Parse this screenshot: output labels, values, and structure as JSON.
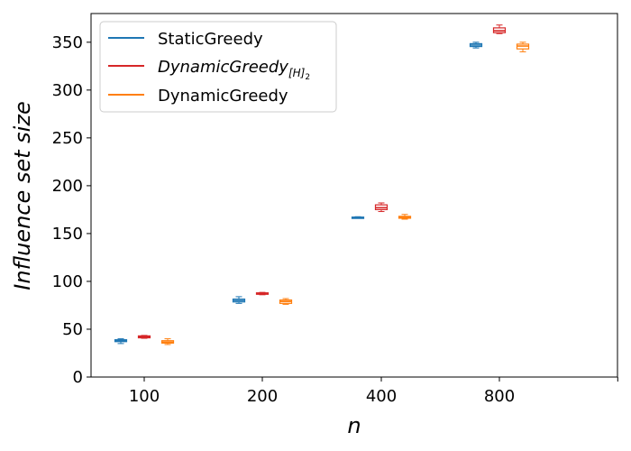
{
  "chart_data": {
    "type": "box",
    "xlabel": "n",
    "ylabel": "Influence set size",
    "categories": [
      "100",
      "200",
      "400",
      "800"
    ],
    "ylim": [
      0,
      380
    ],
    "yticks": [
      0,
      50,
      100,
      150,
      200,
      250,
      300,
      350
    ],
    "legend_position": "top-left",
    "grid": false,
    "series": [
      {
        "name": "StaticGreedy",
        "color": "#1f77b4",
        "boxes": [
          {
            "whislo": 35,
            "q1": 37,
            "med": 38,
            "q3": 39,
            "whishi": 40
          },
          {
            "whislo": 77,
            "q1": 78.5,
            "med": 80,
            "q3": 81.5,
            "whishi": 84
          },
          {
            "whislo": 166,
            "q1": 166.3,
            "med": 166.7,
            "q3": 167.2,
            "whishi": 167.6
          },
          {
            "whislo": 344,
            "q1": 345.5,
            "med": 347,
            "q3": 348.5,
            "whishi": 350
          }
        ]
      },
      {
        "name_main": "DynamicGreedy",
        "name_sub": "[H]",
        "name_subsub": "2",
        "color": "#d62728",
        "boxes": [
          {
            "whislo": 40.5,
            "q1": 41,
            "med": 42,
            "q3": 43,
            "whishi": 43.5
          },
          {
            "whislo": 86,
            "q1": 86.5,
            "med": 87,
            "q3": 88,
            "whishi": 88.5
          },
          {
            "whislo": 173,
            "q1": 175,
            "med": 177,
            "q3": 180,
            "whishi": 182
          },
          {
            "whislo": 359,
            "q1": 360,
            "med": 362,
            "q3": 365,
            "whishi": 368
          }
        ]
      },
      {
        "name": "DynamicGreedy",
        "color": "#ff7f0e",
        "boxes": [
          {
            "whislo": 34,
            "q1": 35.5,
            "med": 36.5,
            "q3": 38,
            "whishi": 40
          },
          {
            "whislo": 76,
            "q1": 77,
            "med": 79,
            "q3": 80.5,
            "whishi": 82
          },
          {
            "whislo": 165,
            "q1": 166,
            "med": 167,
            "q3": 168,
            "whishi": 170
          },
          {
            "whislo": 340,
            "q1": 343,
            "med": 346,
            "q3": 348,
            "whishi": 350
          }
        ]
      }
    ]
  }
}
